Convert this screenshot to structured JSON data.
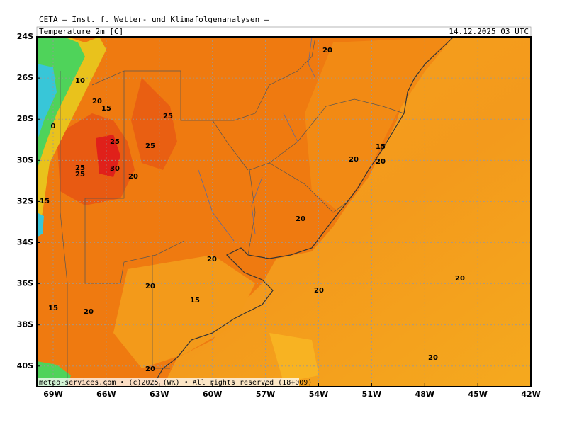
{
  "header": {
    "title": "CETA — Inst. f. Wetter- und Klimafolgenanalysen —",
    "variable": "Temperature 2m [C]",
    "valid_time": "14.12.2025 03 UTC"
  },
  "axes": {
    "lat_labels": [
      "24S",
      "26S",
      "28S",
      "30S",
      "32S",
      "34S",
      "36S",
      "38S",
      "40S"
    ],
    "lon_labels": [
      "69W",
      "66W",
      "63W",
      "60W",
      "57W",
      "54W",
      "51W",
      "48W",
      "45W",
      "42W"
    ]
  },
  "contour_labels": [
    "20",
    "10",
    "20",
    "15",
    "25",
    "0",
    "25",
    "25",
    "15",
    "20",
    "20",
    "25",
    "30",
    "25",
    "20",
    "15",
    "20",
    "20",
    "20",
    "20",
    "20",
    "15",
    "15",
    "20",
    "20",
    "20"
  ],
  "footer": "meteo-services.com • (c)2025 (WK) • All rights reserved (18+009)"
}
